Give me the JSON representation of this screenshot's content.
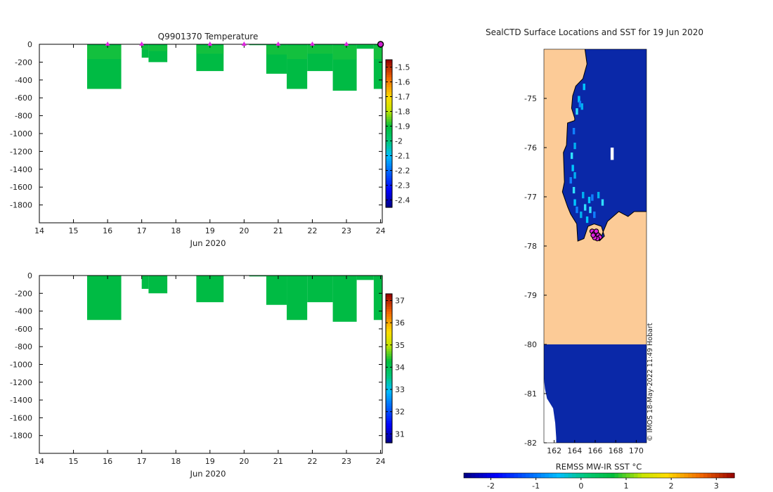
{
  "chart_data": [
    {
      "type": "heatmap",
      "title": "Q9901370  Temperature",
      "xlabel": "Jun 2020",
      "ylabel": "",
      "xlim": [
        14,
        24.05
      ],
      "ylim": [
        -2000,
        0
      ],
      "x_ticks": [
        14,
        15,
        16,
        17,
        18,
        19,
        20,
        21,
        22,
        23,
        24
      ],
      "y_ticks": [
        0,
        -200,
        -400,
        -600,
        -800,
        -1000,
        -1200,
        -1400,
        -1600,
        -1800
      ],
      "colorbar": {
        "min": -2.45,
        "max": -1.45,
        "ticks": [
          -1.5,
          -1.6,
          -1.7,
          -1.8,
          -1.9,
          -2,
          -2.1,
          -2.2,
          -2.3,
          -2.4
        ]
      },
      "markers": {
        "color": "#e020e0",
        "x": [
          16,
          17,
          19,
          20,
          21,
          22,
          23
        ]
      },
      "end_marker_x": 24,
      "profiles": [
        {
          "x0": 15.4,
          "x1": 16.4,
          "depth": 500
        },
        {
          "x0": 17.0,
          "x1": 17.2,
          "depth": 150
        },
        {
          "x0": 17.2,
          "x1": 17.75,
          "depth": 200
        },
        {
          "x0": 18.6,
          "x1": 19.4,
          "depth": 300
        },
        {
          "x0": 20.15,
          "x1": 20.65,
          "depth": 10
        },
        {
          "x0": 20.65,
          "x1": 21.25,
          "depth": 330
        },
        {
          "x0": 21.25,
          "x1": 21.85,
          "depth": 500
        },
        {
          "x0": 21.85,
          "x1": 22.6,
          "depth": 300
        },
        {
          "x0": 22.6,
          "x1": 23.3,
          "depth": 520
        },
        {
          "x0": 23.3,
          "x1": 23.8,
          "depth": 50
        },
        {
          "x0": 23.8,
          "x1": 24.05,
          "depth": 500
        }
      ]
    },
    {
      "type": "heatmap",
      "title": "",
      "xlabel": "Jun 2020",
      "ylabel": "",
      "xlim": [
        14,
        24.05
      ],
      "ylim": [
        -2000,
        0
      ],
      "x_ticks": [
        14,
        15,
        16,
        17,
        18,
        19,
        20,
        21,
        22,
        23,
        24
      ],
      "y_ticks": [
        0,
        -200,
        -400,
        -600,
        -800,
        -1000,
        -1200,
        -1400,
        -1600,
        -1800
      ],
      "colorbar": {
        "min": 30.6,
        "max": 37.3,
        "ticks": [
          37,
          36,
          35,
          34,
          33,
          32,
          31
        ]
      },
      "profiles": [
        {
          "x0": 15.4,
          "x1": 16.4,
          "depth": 500
        },
        {
          "x0": 17.0,
          "x1": 17.2,
          "depth": 150
        },
        {
          "x0": 17.2,
          "x1": 17.75,
          "depth": 200
        },
        {
          "x0": 18.6,
          "x1": 19.4,
          "depth": 300
        },
        {
          "x0": 20.15,
          "x1": 20.65,
          "depth": 10
        },
        {
          "x0": 20.65,
          "x1": 21.25,
          "depth": 330
        },
        {
          "x0": 21.25,
          "x1": 21.85,
          "depth": 500
        },
        {
          "x0": 21.85,
          "x1": 22.6,
          "depth": 300
        },
        {
          "x0": 22.6,
          "x1": 23.3,
          "depth": 520
        },
        {
          "x0": 23.3,
          "x1": 23.8,
          "depth": 50
        },
        {
          "x0": 23.8,
          "x1": 24.05,
          "depth": 500
        }
      ]
    },
    {
      "type": "heatmap",
      "title": "SealCTD Surface Locations and SST for 19 Jun 2020",
      "xlim": [
        161,
        171
      ],
      "ylim": [
        -82,
        -74
      ],
      "x_ticks": [
        162,
        164,
        166,
        168,
        170
      ],
      "y_ticks": [
        -75,
        -76,
        -77,
        -78,
        -79,
        -80,
        -81,
        -82
      ],
      "colorbar": {
        "label": "REMSS MW-IR SST °C",
        "min": -2.6,
        "max": 3.4,
        "ticks": [
          -2,
          -1,
          0,
          1,
          2,
          3
        ]
      },
      "credit": "© IMOS 18-May-2022 11:49 Hobart",
      "land_color": "#fccb97",
      "ocean_color": "#0a28a8",
      "coastline": [
        [
          165.0,
          -74.0
        ],
        [
          165.2,
          -74.3
        ],
        [
          164.8,
          -74.6
        ],
        [
          164.1,
          -74.75
        ],
        [
          163.8,
          -74.95
        ],
        [
          163.7,
          -75.2
        ],
        [
          164.0,
          -75.4
        ],
        [
          164.0,
          -75.45
        ],
        [
          163.3,
          -75.5
        ],
        [
          163.2,
          -75.95
        ],
        [
          162.9,
          -76.1
        ],
        [
          163.0,
          -76.7
        ],
        [
          162.8,
          -76.9
        ],
        [
          163.3,
          -77.2
        ],
        [
          163.6,
          -77.35
        ],
        [
          163.9,
          -77.45
        ],
        [
          164.2,
          -77.55
        ],
        [
          164.3,
          -77.9
        ],
        [
          164.9,
          -77.85
        ],
        [
          165.3,
          -77.6
        ],
        [
          165.9,
          -77.55
        ],
        [
          166.6,
          -77.6
        ],
        [
          166.9,
          -77.8
        ],
        [
          166.4,
          -77.9
        ],
        [
          167.2,
          -77.5
        ],
        [
          168.3,
          -77.3
        ],
        [
          169.2,
          -77.4
        ],
        [
          169.8,
          -77.3
        ],
        [
          171.0,
          -77.3
        ]
      ],
      "ice_front_lat": -80.0,
      "blank_areas": [
        [
          [
            161,
            -80.0
          ],
          [
            161,
            -82
          ],
          [
            162.2,
            -82
          ],
          [
            162.2,
            -81.9
          ],
          [
            162.1,
            -81.6
          ],
          [
            161.9,
            -81.3
          ],
          [
            161.6,
            -81.2
          ],
          [
            161.3,
            -81.1
          ],
          [
            161.1,
            -80.9
          ],
          [
            161,
            -80.7
          ]
        ],
        [
          [
            167.5,
            -76.0
          ],
          [
            167.8,
            -76.0
          ],
          [
            167.8,
            -76.25
          ],
          [
            167.5,
            -76.25
          ]
        ]
      ],
      "nearshore_cells": [
        [
          164.3,
          -74.95
        ],
        [
          164.4,
          -75.05
        ],
        [
          164.6,
          -75.1
        ],
        [
          164.1,
          -75.2
        ],
        [
          164.8,
          -74.7
        ],
        [
          163.8,
          -75.6
        ],
        [
          163.9,
          -75.9
        ],
        [
          163.6,
          -76.1
        ],
        [
          163.7,
          -76.35
        ],
        [
          163.5,
          -76.6
        ],
        [
          163.9,
          -76.5
        ],
        [
          163.8,
          -76.8
        ],
        [
          163.9,
          -77.05
        ],
        [
          164.1,
          -77.2
        ],
        [
          164.5,
          -77.3
        ],
        [
          164.9,
          -77.15
        ],
        [
          165.3,
          -77.0
        ],
        [
          165.6,
          -76.95
        ],
        [
          166.2,
          -76.9
        ],
        [
          166.6,
          -77.05
        ],
        [
          165.1,
          -77.4
        ],
        [
          165.8,
          -77.3
        ],
        [
          164.7,
          -76.9
        ],
        [
          165.4,
          -77.2
        ]
      ],
      "float_positions": [
        [
          165.7,
          -77.7
        ],
        [
          165.9,
          -77.75
        ],
        [
          166.1,
          -77.7
        ],
        [
          166.3,
          -77.78
        ],
        [
          166.45,
          -77.82
        ],
        [
          166.2,
          -77.85
        ],
        [
          165.95,
          -77.83
        ],
        [
          165.8,
          -77.78
        ]
      ]
    }
  ]
}
